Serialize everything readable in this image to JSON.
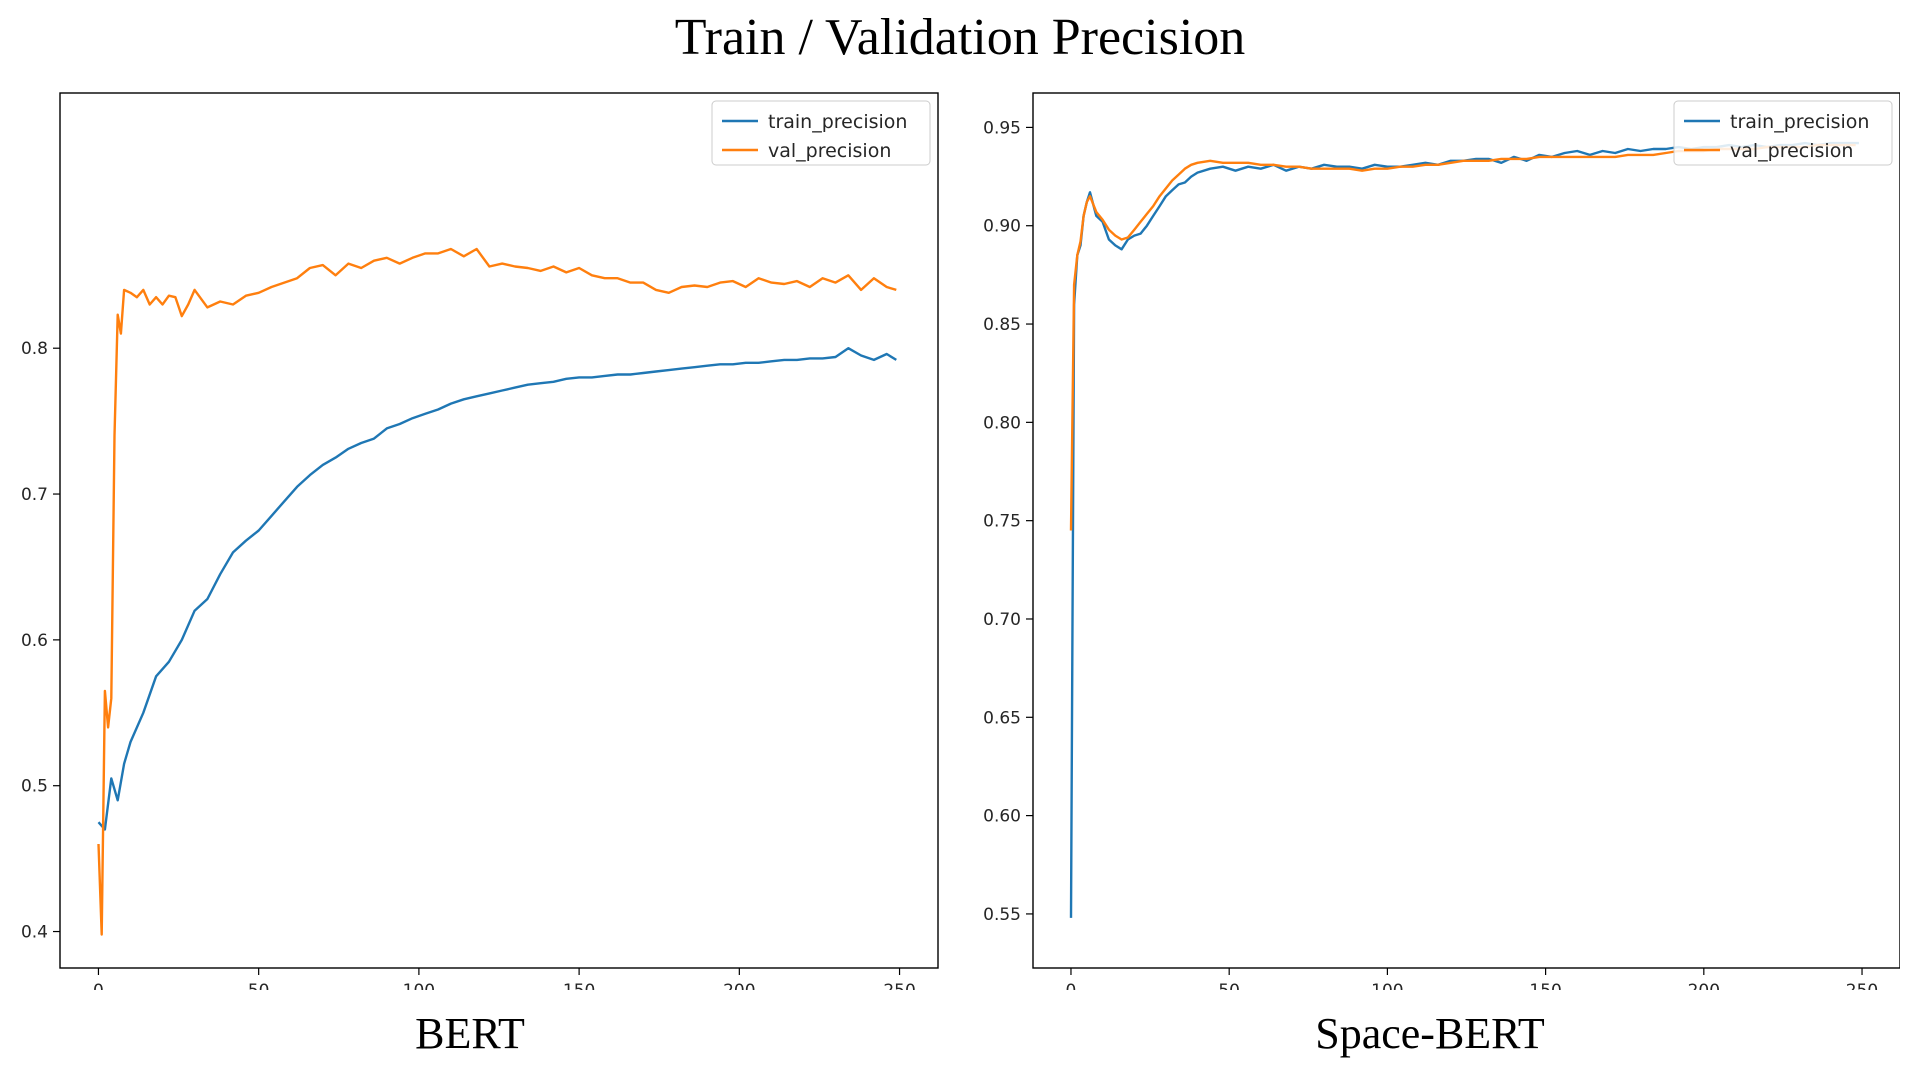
{
  "figure": {
    "title": "Train / Validation Precision"
  },
  "colors": {
    "train": "#1f77b4",
    "val": "#ff7f0e",
    "axis": "#000000"
  },
  "chart_data": [
    {
      "type": "line",
      "title": "BERT",
      "xlabel": "",
      "ylabel": "",
      "xlim": [
        -12,
        262
      ],
      "ylim": [
        0.375,
        0.975
      ],
      "xticks": [
        0,
        50,
        100,
        150,
        200,
        250
      ],
      "xtick_labels": [
        "0",
        "50",
        "100",
        "150",
        "200",
        "250"
      ],
      "yticks": [
        0.4,
        0.5,
        0.6,
        0.7,
        0.8
      ],
      "ytick_labels": [
        "0.4",
        "0.5",
        "0.6",
        "0.7",
        "0.8"
      ],
      "legend": {
        "placement": "top-right",
        "entries": [
          "train_precision",
          "val_precision"
        ]
      },
      "series": [
        {
          "name": "train_precision",
          "x": [
            0,
            2,
            4,
            6,
            8,
            10,
            14,
            18,
            22,
            26,
            30,
            34,
            38,
            42,
            46,
            50,
            54,
            58,
            62,
            66,
            70,
            74,
            78,
            82,
            86,
            90,
            94,
            98,
            102,
            106,
            110,
            114,
            118,
            122,
            126,
            130,
            134,
            138,
            142,
            146,
            150,
            154,
            158,
            162,
            166,
            170,
            174,
            178,
            182,
            186,
            190,
            194,
            198,
            202,
            206,
            210,
            214,
            218,
            222,
            226,
            230,
            234,
            238,
            242,
            246,
            249
          ],
          "values": [
            0.475,
            0.47,
            0.505,
            0.49,
            0.515,
            0.53,
            0.55,
            0.575,
            0.585,
            0.6,
            0.62,
            0.628,
            0.645,
            0.66,
            0.668,
            0.675,
            0.685,
            0.695,
            0.705,
            0.713,
            0.72,
            0.725,
            0.731,
            0.735,
            0.738,
            0.745,
            0.748,
            0.752,
            0.755,
            0.758,
            0.762,
            0.765,
            0.767,
            0.769,
            0.771,
            0.773,
            0.775,
            0.776,
            0.777,
            0.779,
            0.78,
            0.78,
            0.781,
            0.782,
            0.782,
            0.783,
            0.784,
            0.785,
            0.786,
            0.787,
            0.788,
            0.789,
            0.789,
            0.79,
            0.79,
            0.791,
            0.792,
            0.792,
            0.793,
            0.793,
            0.794,
            0.8,
            0.795,
            0.792,
            0.796,
            0.792
          ]
        },
        {
          "name": "val_precision",
          "x": [
            0,
            1,
            2,
            3,
            4,
            5,
            6,
            7,
            8,
            10,
            12,
            14,
            16,
            18,
            20,
            22,
            24,
            26,
            28,
            30,
            34,
            38,
            42,
            46,
            50,
            54,
            58,
            62,
            66,
            70,
            74,
            78,
            82,
            86,
            90,
            94,
            98,
            102,
            106,
            110,
            114,
            118,
            122,
            126,
            130,
            134,
            138,
            142,
            146,
            150,
            154,
            158,
            162,
            166,
            170,
            174,
            178,
            182,
            186,
            190,
            194,
            198,
            202,
            206,
            210,
            214,
            218,
            222,
            226,
            230,
            234,
            238,
            242,
            246,
            249
          ],
          "values": [
            0.46,
            0.398,
            0.565,
            0.54,
            0.56,
            0.74,
            0.823,
            0.81,
            0.84,
            0.838,
            0.835,
            0.84,
            0.83,
            0.835,
            0.83,
            0.836,
            0.835,
            0.822,
            0.83,
            0.84,
            0.828,
            0.832,
            0.83,
            0.836,
            0.838,
            0.842,
            0.845,
            0.848,
            0.855,
            0.857,
            0.85,
            0.858,
            0.855,
            0.86,
            0.862,
            0.858,
            0.862,
            0.865,
            0.865,
            0.868,
            0.863,
            0.868,
            0.856,
            0.858,
            0.856,
            0.855,
            0.853,
            0.856,
            0.852,
            0.855,
            0.85,
            0.848,
            0.848,
            0.845,
            0.845,
            0.84,
            0.838,
            0.842,
            0.843,
            0.842,
            0.845,
            0.846,
            0.842,
            0.848,
            0.845,
            0.844,
            0.846,
            0.842,
            0.848,
            0.845,
            0.85,
            0.84,
            0.848,
            0.842,
            0.84
          ]
        }
      ]
    },
    {
      "type": "line",
      "title": "Space-BERT",
      "xlabel": "",
      "ylabel": "",
      "xlim": [
        -12,
        262
      ],
      "ylim": [
        0.5225,
        0.9675
      ],
      "xticks": [
        0,
        50,
        100,
        150,
        200,
        250
      ],
      "xtick_labels": [
        "0",
        "50",
        "100",
        "150",
        "200",
        "250"
      ],
      "yticks": [
        0.55,
        0.6,
        0.65,
        0.7,
        0.75,
        0.8,
        0.85,
        0.9,
        0.95
      ],
      "ytick_labels": [
        "0.55",
        "0.60",
        "0.65",
        "0.70",
        "0.75",
        "0.80",
        "0.85",
        "0.90",
        "0.95"
      ],
      "legend": {
        "placement": "top-right",
        "entries": [
          "train_precision",
          "val_precision"
        ]
      },
      "series": [
        {
          "name": "train_precision",
          "x": [
            0,
            1,
            2,
            3,
            4,
            5,
            6,
            8,
            10,
            12,
            14,
            16,
            18,
            20,
            22,
            24,
            26,
            28,
            30,
            32,
            34,
            36,
            38,
            40,
            44,
            48,
            52,
            56,
            60,
            64,
            68,
            72,
            76,
            80,
            84,
            88,
            92,
            96,
            100,
            104,
            108,
            112,
            116,
            120,
            124,
            128,
            132,
            136,
            140,
            144,
            148,
            152,
            156,
            160,
            164,
            168,
            172,
            176,
            180,
            184,
            188,
            192,
            196,
            200,
            204,
            208,
            212,
            216,
            220,
            224,
            228,
            232,
            236,
            240,
            244,
            248,
            249
          ],
          "values": [
            0.548,
            0.86,
            0.885,
            0.89,
            0.905,
            0.912,
            0.917,
            0.905,
            0.902,
            0.893,
            0.89,
            0.888,
            0.893,
            0.895,
            0.896,
            0.9,
            0.905,
            0.91,
            0.915,
            0.918,
            0.921,
            0.922,
            0.925,
            0.927,
            0.929,
            0.93,
            0.928,
            0.93,
            0.929,
            0.931,
            0.928,
            0.93,
            0.929,
            0.931,
            0.93,
            0.93,
            0.929,
            0.931,
            0.93,
            0.93,
            0.931,
            0.932,
            0.931,
            0.933,
            0.933,
            0.934,
            0.934,
            0.932,
            0.935,
            0.933,
            0.936,
            0.935,
            0.937,
            0.938,
            0.936,
            0.938,
            0.937,
            0.939,
            0.938,
            0.939,
            0.939,
            0.94,
            0.939,
            0.94,
            0.94,
            0.941,
            0.94,
            0.941,
            0.94,
            0.941,
            0.941,
            0.942,
            0.941,
            0.942,
            0.942,
            0.942,
            0.942
          ]
        },
        {
          "name": "val_precision",
          "x": [
            0,
            1,
            2,
            3,
            4,
            5,
            6,
            8,
            10,
            12,
            14,
            16,
            18,
            20,
            22,
            24,
            26,
            28,
            30,
            32,
            34,
            36,
            38,
            40,
            44,
            48,
            52,
            56,
            60,
            64,
            68,
            72,
            76,
            80,
            84,
            88,
            92,
            96,
            100,
            104,
            108,
            112,
            116,
            120,
            124,
            128,
            132,
            136,
            140,
            144,
            148,
            152,
            156,
            160,
            164,
            168,
            172,
            176,
            180,
            184,
            188,
            192,
            196,
            200,
            204,
            208,
            212,
            216,
            220,
            224,
            228,
            232,
            236,
            240,
            244,
            248
          ],
          "values": [
            0.745,
            0.87,
            0.885,
            0.892,
            0.905,
            0.912,
            0.915,
            0.907,
            0.903,
            0.898,
            0.895,
            0.893,
            0.894,
            0.898,
            0.902,
            0.906,
            0.91,
            0.915,
            0.919,
            0.923,
            0.926,
            0.929,
            0.931,
            0.932,
            0.933,
            0.932,
            0.932,
            0.932,
            0.931,
            0.931,
            0.93,
            0.93,
            0.929,
            0.929,
            0.929,
            0.929,
            0.928,
            0.929,
            0.929,
            0.93,
            0.93,
            0.931,
            0.931,
            0.932,
            0.933,
            0.933,
            0.933,
            0.934,
            0.934,
            0.934,
            0.935,
            0.935,
            0.935,
            0.935,
            0.935,
            0.935,
            0.935,
            0.936,
            0.936,
            0.936,
            0.937,
            0.938,
            0.938,
            0.938,
            0.939,
            0.939,
            0.939,
            0.939,
            0.94,
            0.94,
            0.94,
            0.94,
            0.941,
            0.941,
            0.941,
            0.941
          ]
        }
      ]
    }
  ]
}
